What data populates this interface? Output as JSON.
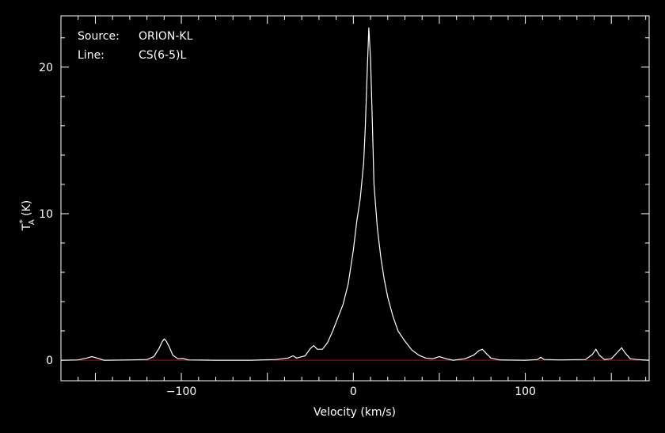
{
  "chart_data": {
    "type": "line",
    "annotations": {
      "source_label": "Source:",
      "source_value": "ORION-KL",
      "line_label": "Line:",
      "line_value": "CS(6-5)L"
    },
    "xlabel": "Velocity (km/s)",
    "ylabel_main": "T",
    "ylabel_sup": "*",
    "ylabel_sub": "A",
    "ylabel_unit": " (K)",
    "xlim": [
      -170,
      172
    ],
    "ylim": [
      -1.4,
      23.5
    ],
    "xticks": [
      {
        "value": -100,
        "label": "−100"
      },
      {
        "value": 0,
        "label": "0"
      },
      {
        "value": 100,
        "label": "100"
      }
    ],
    "yticks": [
      {
        "value": 0,
        "label": "0"
      },
      {
        "value": 10,
        "label": "10"
      },
      {
        "value": 20,
        "label": "20"
      }
    ],
    "baseline": {
      "value": 0,
      "color": "#cc0000"
    },
    "grid": false,
    "colors": {
      "background": "#000000",
      "axes": "#ffffff",
      "spectrum": "#ffffff"
    },
    "series": [
      {
        "color": "#ffffff",
        "points": [
          [
            -170,
            0.0
          ],
          [
            -160,
            0.02
          ],
          [
            -155,
            0.15
          ],
          [
            -152,
            0.25
          ],
          [
            -149,
            0.15
          ],
          [
            -145,
            0.0
          ],
          [
            -130,
            0.02
          ],
          [
            -120,
            0.05
          ],
          [
            -116,
            0.25
          ],
          [
            -113,
            0.8
          ],
          [
            -111,
            1.3
          ],
          [
            -110,
            1.45
          ],
          [
            -109,
            1.35
          ],
          [
            -107,
            0.9
          ],
          [
            -105,
            0.35
          ],
          [
            -102,
            0.1
          ],
          [
            -99,
            0.12
          ],
          [
            -96,
            0.02
          ],
          [
            -80,
            0.0
          ],
          [
            -60,
            0.0
          ],
          [
            -45,
            0.05
          ],
          [
            -38,
            0.15
          ],
          [
            -35,
            0.3
          ],
          [
            -33,
            0.15
          ],
          [
            -28,
            0.3
          ],
          [
            -25,
            0.8
          ],
          [
            -23,
            1.0
          ],
          [
            -21,
            0.75
          ],
          [
            -18,
            0.75
          ],
          [
            -15,
            1.2
          ],
          [
            -12,
            2.0
          ],
          [
            -9,
            2.9
          ],
          [
            -6,
            3.8
          ],
          [
            -3,
            5.2
          ],
          [
            0,
            7.5
          ],
          [
            2,
            9.5
          ],
          [
            4,
            11.0
          ],
          [
            6,
            13.5
          ],
          [
            7,
            16.0
          ],
          [
            8,
            19.5
          ],
          [
            9,
            22.7
          ],
          [
            10,
            20.5
          ],
          [
            11,
            16.5
          ],
          [
            12,
            12.0
          ],
          [
            14,
            9.0
          ],
          [
            16,
            7.0
          ],
          [
            18,
            5.5
          ],
          [
            20,
            4.3
          ],
          [
            23,
            3.0
          ],
          [
            26,
            2.0
          ],
          [
            30,
            1.3
          ],
          [
            34,
            0.7
          ],
          [
            38,
            0.35
          ],
          [
            42,
            0.15
          ],
          [
            46,
            0.1
          ],
          [
            50,
            0.25
          ],
          [
            54,
            0.1
          ],
          [
            58,
            0.0
          ],
          [
            65,
            0.1
          ],
          [
            70,
            0.35
          ],
          [
            73,
            0.65
          ],
          [
            75,
            0.75
          ],
          [
            77,
            0.5
          ],
          [
            80,
            0.15
          ],
          [
            85,
            0.02
          ],
          [
            100,
            0.0
          ],
          [
            107,
            0.05
          ],
          [
            109,
            0.2
          ],
          [
            111,
            0.05
          ],
          [
            120,
            0.02
          ],
          [
            135,
            0.05
          ],
          [
            139,
            0.4
          ],
          [
            141,
            0.75
          ],
          [
            143,
            0.35
          ],
          [
            146,
            0.05
          ],
          [
            150,
            0.1
          ],
          [
            154,
            0.6
          ],
          [
            156,
            0.85
          ],
          [
            158,
            0.5
          ],
          [
            161,
            0.1
          ],
          [
            165,
            0.05
          ],
          [
            172,
            0.0
          ]
        ]
      }
    ]
  }
}
